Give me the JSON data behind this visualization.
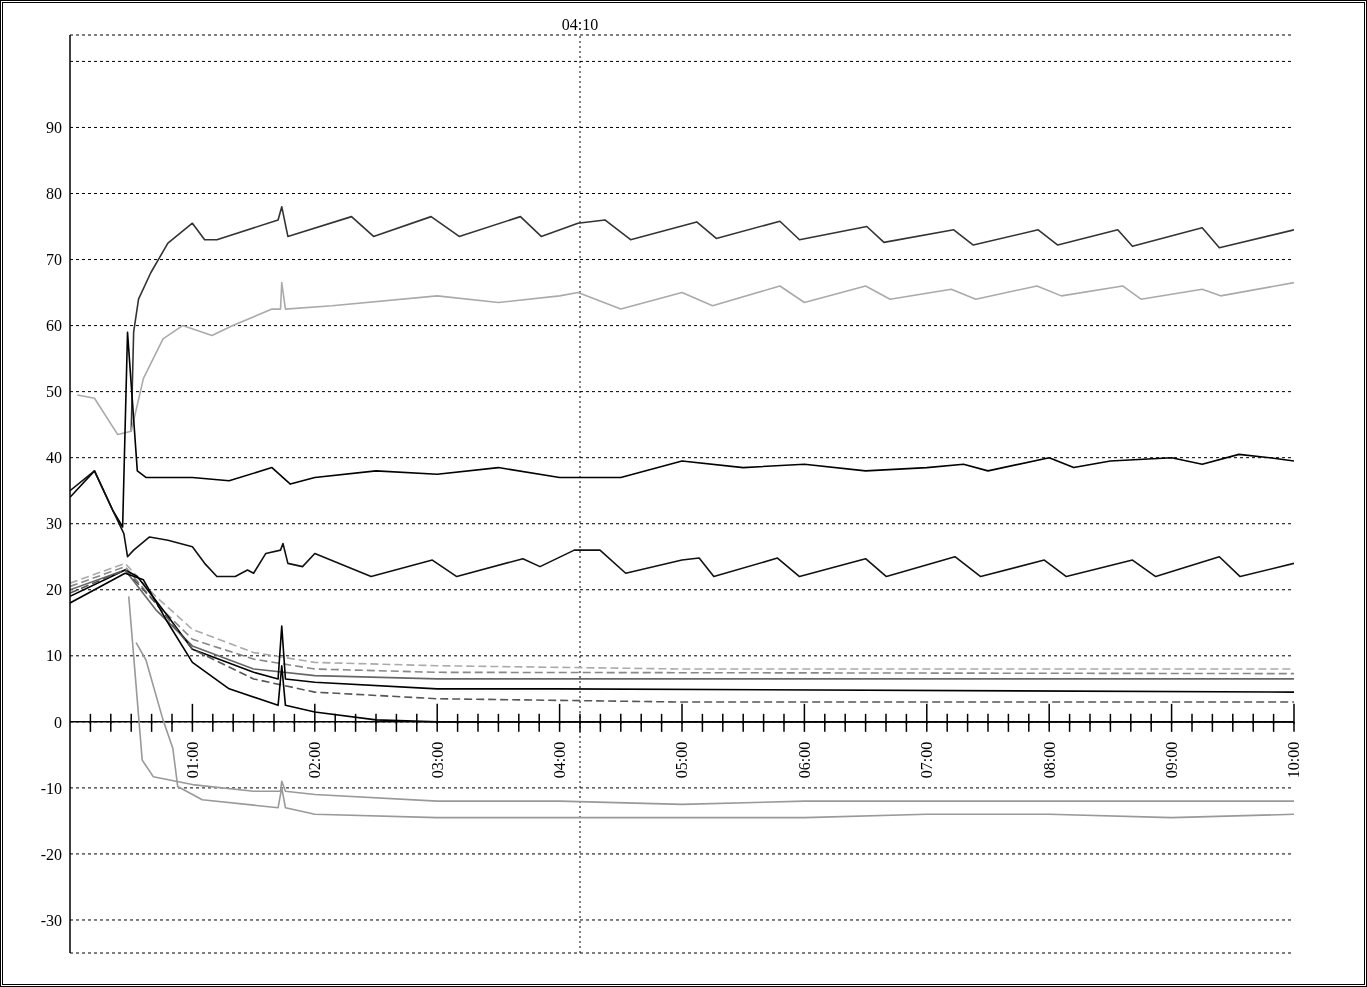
{
  "chart_data": {
    "type": "line",
    "marker": "none",
    "grid": "y",
    "xlim": [
      0,
      10
    ],
    "ylim": [
      -35,
      104
    ],
    "yticks": [
      -30,
      -20,
      -10,
      0,
      10,
      20,
      30,
      40,
      50,
      60,
      70,
      80,
      90,
      {
        "value": 100,
        "label": null
      }
    ],
    "xticks": [
      {
        "value": 0.1667,
        "label": null
      },
      {
        "value": 0.3333,
        "label": null
      },
      {
        "value": 0.5,
        "label": null
      },
      {
        "value": 0.6667,
        "label": null
      },
      {
        "value": 0.8333,
        "label": null
      },
      {
        "value": 1,
        "label": "01:00"
      },
      {
        "value": 1.1667,
        "label": null
      },
      {
        "value": 1.3333,
        "label": null
      },
      {
        "value": 1.5,
        "label": null
      },
      {
        "value": 1.6667,
        "label": null
      },
      {
        "value": 1.8333,
        "label": null
      },
      {
        "value": 2,
        "label": "02:00"
      },
      {
        "value": 2.1667,
        "label": null
      },
      {
        "value": 2.3333,
        "label": null
      },
      {
        "value": 2.5,
        "label": null
      },
      {
        "value": 2.6667,
        "label": null
      },
      {
        "value": 2.8333,
        "label": null
      },
      {
        "value": 3,
        "label": "03:00"
      },
      {
        "value": 3.1667,
        "label": null
      },
      {
        "value": 3.3333,
        "label": null
      },
      {
        "value": 3.5,
        "label": null
      },
      {
        "value": 3.6667,
        "label": null
      },
      {
        "value": 3.8333,
        "label": null
      },
      {
        "value": 4,
        "label": "04:00"
      },
      {
        "value": 4.1667,
        "label": null
      },
      {
        "value": 4.3333,
        "label": null
      },
      {
        "value": 4.5,
        "label": null
      },
      {
        "value": 4.6667,
        "label": null
      },
      {
        "value": 4.8333,
        "label": null
      },
      {
        "value": 5,
        "label": "05:00"
      },
      {
        "value": 5.1667,
        "label": null
      },
      {
        "value": 5.3333,
        "label": null
      },
      {
        "value": 5.5,
        "label": null
      },
      {
        "value": 5.6667,
        "label": null
      },
      {
        "value": 5.8333,
        "label": null
      },
      {
        "value": 6,
        "label": "06:00"
      },
      {
        "value": 6.1667,
        "label": null
      },
      {
        "value": 6.3333,
        "label": null
      },
      {
        "value": 6.5,
        "label": null
      },
      {
        "value": 6.6667,
        "label": null
      },
      {
        "value": 6.8333,
        "label": null
      },
      {
        "value": 7,
        "label": "07:00"
      },
      {
        "value": 7.1667,
        "label": null
      },
      {
        "value": 7.3333,
        "label": null
      },
      {
        "value": 7.5,
        "label": null
      },
      {
        "value": 7.6667,
        "label": null
      },
      {
        "value": 7.8333,
        "label": null
      },
      {
        "value": 8,
        "label": "08:00"
      },
      {
        "value": 8.1667,
        "label": null
      },
      {
        "value": 8.3333,
        "label": null
      },
      {
        "value": 8.5,
        "label": null
      },
      {
        "value": 8.6667,
        "label": null
      },
      {
        "value": 8.8333,
        "label": null
      },
      {
        "value": 9,
        "label": "09:00"
      },
      {
        "value": 9.1667,
        "label": null
      },
      {
        "value": 9.3333,
        "label": null
      },
      {
        "value": 9.5,
        "label": null
      },
      {
        "value": 9.6667,
        "label": null
      },
      {
        "value": 9.8333,
        "label": null
      },
      {
        "value": 10,
        "label": "10:00"
      }
    ],
    "ref_lines": [
      {
        "axis": "x",
        "value": 4.1667,
        "label": "04:10",
        "color": "#000000",
        "line_style": "dotted"
      }
    ],
    "series": [
      {
        "color": "#333333",
        "x": [
          0.5,
          0.52,
          0.56,
          0.66,
          0.8,
          1.0,
          1.1,
          1.2,
          1.7,
          1.73,
          1.78,
          2.3,
          2.48,
          2.95,
          3.18,
          3.68,
          3.85,
          4.15,
          4.37,
          4.58,
          5.12,
          5.28,
          5.8,
          5.96,
          6.51,
          6.65,
          7.22,
          7.38,
          7.91,
          8.07,
          8.56,
          8.68,
          9.25,
          9.39,
          10
        ],
        "values": [
          44,
          59,
          64,
          68,
          72.5,
          75.5,
          73,
          73,
          76,
          78,
          73.5,
          76.5,
          73.5,
          76.5,
          73.5,
          76.5,
          73.5,
          75.5,
          76,
          73,
          75.7,
          73.2,
          75.8,
          73,
          75,
          72.6,
          74.5,
          72.2,
          74.5,
          72.2,
          74.5,
          72,
          74.8,
          71.8,
          74.5
        ]
      },
      {
        "color": "#aaaaaa",
        "x": [
          0.06,
          0.2,
          0.39,
          0.5,
          0.6,
          0.76,
          0.92,
          1.16,
          1.33,
          1.65,
          1.72,
          1.73,
          1.76,
          2.14,
          3.0,
          3.5,
          4.0,
          4.15,
          4.5,
          5.0,
          5.25,
          5.8,
          6.0,
          6.5,
          6.7,
          7.2,
          7.4,
          7.9,
          8.1,
          8.6,
          8.75,
          9.25,
          9.4,
          10
        ],
        "values": [
          49.5,
          49,
          43.5,
          44,
          52,
          58,
          60,
          58.5,
          60,
          62.5,
          62.5,
          66.5,
          62.5,
          63,
          64.5,
          63.5,
          64.5,
          65,
          62.5,
          65,
          63,
          66,
          63.5,
          66,
          64,
          65.5,
          64,
          66,
          64.5,
          66,
          64,
          65.5,
          64.5,
          66.5
        ]
      },
      {
        "color": "#000000",
        "x": [
          0,
          0.2,
          0.35,
          0.43,
          0.47,
          0.55,
          0.62,
          1.0,
          1.3,
          1.65,
          1.8,
          2.0,
          2.5,
          3.0,
          3.5,
          4.0,
          4.5,
          5.0,
          5.5,
          6.0,
          6.5,
          7.0,
          7.3,
          7.5,
          8.0,
          8.2,
          8.5,
          9.0,
          9.25,
          9.55,
          9.8,
          10
        ],
        "values": [
          34,
          38,
          32,
          29.5,
          59,
          38,
          37,
          37,
          36.5,
          38.5,
          36,
          37,
          38,
          37.5,
          38.5,
          37,
          37,
          39.5,
          38.5,
          39,
          38,
          38.5,
          39,
          38,
          40,
          38.5,
          39.5,
          40,
          39,
          40.5,
          40,
          39.5
        ]
      },
      {
        "color": "#111111",
        "x": [
          0,
          0.2,
          0.35,
          0.44,
          0.47,
          0.52,
          0.65,
          0.8,
          1.0,
          1.1,
          1.2,
          1.35,
          1.45,
          1.5,
          1.6,
          1.72,
          1.74,
          1.78,
          1.9,
          2.0,
          2.46,
          2.96,
          3.16,
          3.7,
          3.84,
          4.12,
          4.33,
          4.54,
          5.0,
          5.14,
          5.26,
          5.78,
          5.96,
          6.5,
          6.67,
          7.23,
          7.44,
          7.96,
          8.14,
          8.68,
          8.87,
          9.39,
          9.56,
          10
        ],
        "values": [
          35,
          38,
          32,
          28.5,
          25,
          26,
          28,
          27.5,
          26.5,
          24,
          22,
          22,
          23,
          22.5,
          25.5,
          26,
          27,
          24,
          23.5,
          25.5,
          22,
          24.5,
          22,
          24.7,
          23.5,
          26,
          26,
          22.5,
          24.5,
          24.8,
          22,
          24.8,
          22,
          24.7,
          22,
          25,
          22,
          24.5,
          22,
          24.5,
          22,
          25,
          22,
          24
        ]
      },
      {
        "color": "#aaaaaa",
        "line_style": "dashed",
        "x": [
          0,
          0.45,
          0.7,
          1.0,
          1.5,
          2.0,
          3.0,
          5.0,
          10
        ],
        "values": [
          21,
          24,
          19,
          14,
          10.5,
          9,
          8.5,
          8,
          8
        ]
      },
      {
        "color": "#888888",
        "line_style": "dashed",
        "x": [
          0,
          0.45,
          0.7,
          1.0,
          1.5,
          2.0,
          3.0,
          10
        ],
        "values": [
          20.5,
          23.5,
          18,
          12.5,
          9.5,
          8,
          7.5,
          7.3
        ]
      },
      {
        "color": "#666666",
        "x": [
          0,
          0.45,
          0.7,
          1.0,
          1.5,
          2.0,
          3.0,
          10
        ],
        "values": [
          20,
          23,
          17,
          11.5,
          8,
          7,
          6.5,
          6.5
        ]
      },
      {
        "color": "#000000",
        "x": [
          0,
          0.45,
          0.55,
          0.8,
          1.0,
          1.5,
          1.7,
          1.73,
          1.76,
          2.0,
          3.0,
          4.0,
          10
        ],
        "values": [
          19,
          23,
          22,
          16,
          11,
          7.5,
          6.5,
          14.5,
          6.5,
          6,
          5,
          5,
          4.5
        ]
      },
      {
        "color": "#555555",
        "line_style": "dashed",
        "x": [
          0,
          0.45,
          0.7,
          1.0,
          1.5,
          2.0,
          3.0,
          5.0,
          10
        ],
        "values": [
          19.5,
          23,
          18,
          11,
          6.5,
          4.5,
          3.5,
          3,
          3
        ]
      },
      {
        "color": "#000000",
        "x": [
          0,
          0.45,
          0.6,
          0.8,
          1.0,
          1.3,
          1.7,
          1.73,
          1.76,
          2.0,
          2.5,
          3.0,
          10
        ],
        "values": [
          18,
          22.5,
          21.5,
          15,
          9,
          5,
          2.5,
          8.5,
          2.5,
          1.5,
          0.3,
          0,
          0
        ]
      },
      {
        "color": "#999999",
        "x": [
          0.48,
          0.59,
          0.68,
          1.0,
          1.5,
          1.72,
          1.73,
          1.76,
          2.0,
          3.0,
          4.0,
          5.0,
          6.0,
          7.0,
          8.0,
          9.0,
          10
        ],
        "values": [
          19,
          -5.8,
          -8.3,
          -9.5,
          -10.5,
          -10.5,
          -9,
          -10.5,
          -11,
          -12,
          -12,
          -12.5,
          -12,
          -12,
          -12,
          -12,
          -12
        ]
      },
      {
        "color": "#999999",
        "x": [
          0.54,
          0.62,
          0.76,
          0.84,
          0.88,
          1.08,
          1.7,
          1.73,
          1.76,
          2.0,
          3.0,
          4.0,
          5.0,
          6.0,
          7.0,
          8.0,
          9.0,
          10
        ],
        "values": [
          12,
          9.4,
          0.3,
          -4,
          -9.8,
          -11.8,
          -13,
          -10,
          -13,
          -14,
          -14.5,
          -14.5,
          -14.5,
          -14.5,
          -14,
          -14,
          -14.5,
          -14
        ]
      }
    ]
  }
}
